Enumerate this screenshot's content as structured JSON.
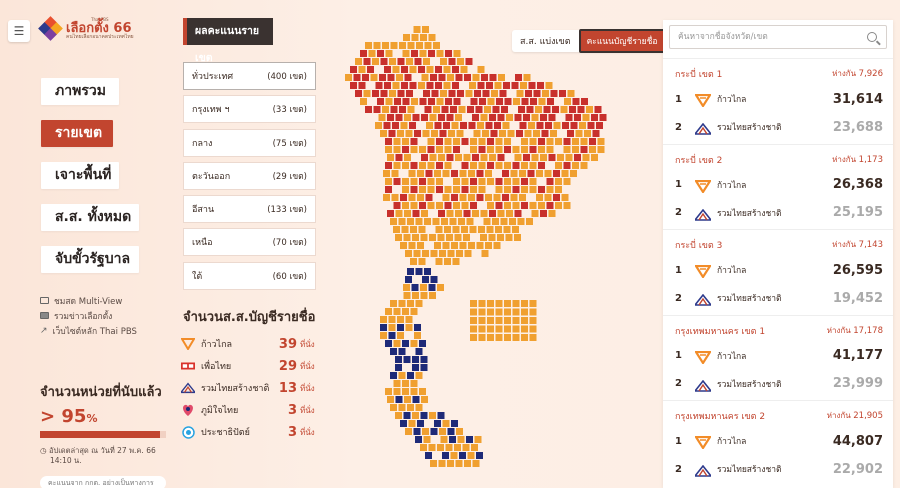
{
  "header": {
    "menu_icon": "hamburger-icon",
    "logo_small": "Thai PBS",
    "logo_main": "เลือกตั้ง 66",
    "logo_sub": "คนไทยเลือกอนาคตประเทศไทย"
  },
  "nav": {
    "items": [
      {
        "label": "ภาพรวม"
      },
      {
        "label": "รายเขต"
      },
      {
        "label": "เจาะพื้นที่"
      },
      {
        "label": "ส.ส. ทั้งหมด"
      },
      {
        "label": "จับขั้วรัฐบาล"
      }
    ]
  },
  "links": [
    {
      "label": "ชมสด Multi-View",
      "icon": "monitor-icon"
    },
    {
      "label": "รวมข่าวเลือกตั้ง",
      "icon": "news-icon"
    },
    {
      "label": "เว็บไซต์หลัก Thai PBS",
      "icon": "external-link-icon"
    }
  ],
  "count": {
    "title": "จำนวนหน่วยที่นับแล้ว",
    "prefix": ">",
    "value": "95",
    "unit": "%",
    "progress": 0.95,
    "updated_line1": "อัปเดตล่าสุด ณ วันที่ 27 พ.ค. 66",
    "updated_line2": "14:10 น.",
    "note": "คะแนนจาก กกต. อย่างเป็นทางการ"
  },
  "results": {
    "tag": "ผลคะแนนรายเขต",
    "regions": [
      {
        "name": "ทั่วประเทศ",
        "count": "(400 เขต)"
      },
      {
        "name": "กรุงเทพ ฯ",
        "count": "(33 เขต)"
      },
      {
        "name": "กลาง",
        "count": "(75 เขต)"
      },
      {
        "name": "ตะวันออก",
        "count": "(29 เขต)"
      },
      {
        "name": "อีสาน",
        "count": "(133 เขต)"
      },
      {
        "name": "เหนือ",
        "count": "(70 เขต)"
      },
      {
        "name": "ใต้",
        "count": "(60 เขต)"
      }
    ]
  },
  "party_list": {
    "title": "จำนวนส.ส.บัญชีรายชื่อ",
    "unit": "ที่นั่ง",
    "parties": [
      {
        "name": "ก้าวไกล",
        "seats": "39",
        "color": "#f28c28"
      },
      {
        "name": "เพื่อไทย",
        "seats": "29",
        "color": "#d9322b"
      },
      {
        "name": "รวมไทยสร้างชาติ",
        "seats": "13",
        "color": "#2d3a8c"
      },
      {
        "name": "ภูมิใจไทย",
        "seats": "3",
        "color": "#1b2a78"
      },
      {
        "name": "ประชาธิปัตย์",
        "seats": "3",
        "color": "#29a3e0"
      }
    ]
  },
  "map": {
    "toggle_left": "ส.ส. แบ่งเขต",
    "toggle_right": "คะแนนบัญชีรายชื่อ",
    "colors": {
      "orange": "#f0a030",
      "red": "#c8302c",
      "navy": "#1e2a78",
      "light": "#f2c9a8"
    }
  },
  "panel": {
    "search_placeholder": "ค้นหาจากชื่อจังหวัด/เขต",
    "margin_label": "ห่างกัน",
    "districts": [
      {
        "name": "กระบี่ เขต 1",
        "margin": "7,926",
        "first": {
          "rank": "1",
          "party": "ก้าวไกล",
          "votes": "31,614"
        },
        "second": {
          "rank": "2",
          "party": "รวมไทยสร้างชาติ",
          "votes": "23,688"
        }
      },
      {
        "name": "กระบี่ เขต 2",
        "margin": "1,173",
        "first": {
          "rank": "1",
          "party": "ก้าวไกล",
          "votes": "26,368"
        },
        "second": {
          "rank": "2",
          "party": "รวมไทยสร้างชาติ",
          "votes": "25,195"
        }
      },
      {
        "name": "กระบี่ เขต 3",
        "margin": "7,143",
        "first": {
          "rank": "1",
          "party": "ก้าวไกล",
          "votes": "26,595"
        },
        "second": {
          "rank": "2",
          "party": "รวมไทยสร้างชาติ",
          "votes": "19,452"
        }
      },
      {
        "name": "กรุงเทพมหานคร เขต 1",
        "margin": "17,178",
        "first": {
          "rank": "1",
          "party": "ก้าวไกล",
          "votes": "41,177"
        },
        "second": {
          "rank": "2",
          "party": "รวมไทยสร้างชาติ",
          "votes": "23,999"
        }
      },
      {
        "name": "กรุงเทพมหานคร เขต 2",
        "margin": "21,905",
        "first": {
          "rank": "1",
          "party": "ก้าวไกล",
          "votes": "44,807"
        },
        "second": {
          "rank": "2",
          "party": "รวมไทยสร้างชาติ",
          "votes": "22,902"
        }
      }
    ]
  }
}
